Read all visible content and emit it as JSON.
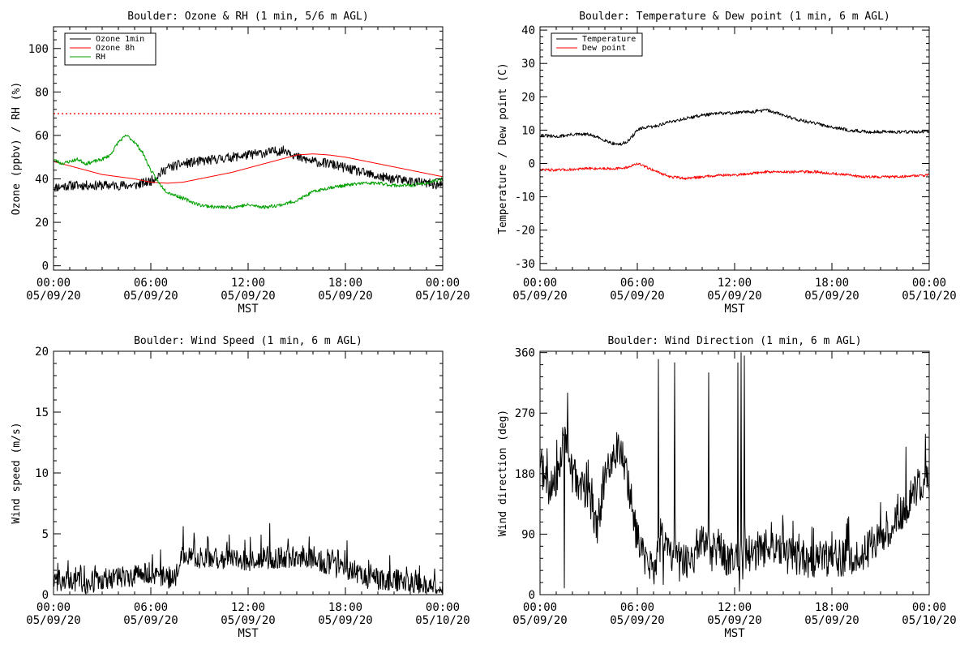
{
  "chart_data": [
    {
      "id": "ozone_rh",
      "type": "line",
      "title": "Boulder: Ozone & RH (1 min, 5/6 m AGL)",
      "xlabel": "MST",
      "ylabel": "Ozone (ppbv) / RH (%)",
      "xlim": [
        0,
        24
      ],
      "ylim": [
        -2,
        110
      ],
      "x_ticks": [
        0,
        6,
        12,
        18,
        24
      ],
      "x_tick_labels": [
        [
          "00:00",
          "05/09/20"
        ],
        [
          "06:00",
          "05/09/20"
        ],
        [
          "12:00",
          "05/09/20"
        ],
        [
          "18:00",
          "05/09/20"
        ],
        [
          "00:00",
          "05/10/20"
        ]
      ],
      "y_ticks": [
        0,
        20,
        40,
        60,
        80,
        100
      ],
      "y_minor_step": 4,
      "legend": "top-left",
      "reference_line": {
        "y": 70,
        "color": "#ff0000",
        "style": "dotted"
      },
      "series": [
        {
          "name": "Ozone 1min",
          "color": "#000000",
          "noise": 2.2,
          "seed": 11,
          "x": [
            0,
            1,
            2,
            3,
            4,
            5,
            5.5,
            6,
            6.5,
            7,
            8,
            9,
            10,
            11,
            12,
            13,
            14,
            14.5,
            15,
            16,
            17,
            18,
            19,
            20,
            21,
            22,
            23,
            24
          ],
          "y": [
            36,
            37,
            37,
            37,
            37,
            37,
            38,
            39,
            42,
            45,
            47,
            48,
            49,
            50,
            51,
            52,
            53,
            53,
            50,
            48,
            47,
            45,
            43,
            41,
            40,
            39,
            38,
            37
          ]
        },
        {
          "name": "Ozone 8h",
          "color": "#ff0000",
          "noise": 0,
          "seed": 0,
          "x": [
            0,
            1,
            2,
            3,
            4,
            5,
            6,
            7,
            8,
            9,
            10,
            11,
            12,
            13,
            14,
            15,
            16,
            17,
            18,
            19,
            20,
            21,
            22,
            23,
            24
          ],
          "y": [
            48,
            46,
            44,
            42,
            41,
            40,
            38.5,
            38,
            38.5,
            40,
            41.5,
            43,
            45,
            47,
            49,
            51,
            51.5,
            51,
            50,
            48.5,
            47,
            45.5,
            44,
            42.5,
            41
          ]
        },
        {
          "name": "RH",
          "color": "#00a000",
          "noise": 0.8,
          "seed": 23,
          "x": [
            0,
            0.5,
            1,
            1.5,
            2,
            2.5,
            3,
            3.5,
            4,
            4.5,
            5,
            5.5,
            6,
            6.5,
            7,
            8,
            9,
            10,
            11,
            12,
            13,
            14,
            15,
            16,
            17,
            18,
            19,
            20,
            21,
            22,
            23,
            24
          ],
          "y": [
            49,
            47,
            48,
            49,
            47,
            48,
            49,
            51,
            57,
            60,
            57,
            52,
            44,
            38,
            34,
            31,
            28,
            27,
            27,
            28,
            27,
            28,
            30,
            34,
            36,
            37,
            38,
            38,
            37,
            37,
            38,
            40
          ]
        }
      ]
    },
    {
      "id": "temp_dew",
      "type": "line",
      "title": "Boulder: Temperature & Dew point (1 min, 6 m AGL)",
      "xlabel": "MST",
      "ylabel": "Temperature / Dew point (C)",
      "xlim": [
        0,
        24
      ],
      "ylim": [
        -32,
        41
      ],
      "x_ticks": [
        0,
        6,
        12,
        18,
        24
      ],
      "x_tick_labels": [
        [
          "00:00",
          "05/09/20"
        ],
        [
          "06:00",
          "05/09/20"
        ],
        [
          "12:00",
          "05/09/20"
        ],
        [
          "18:00",
          "05/09/20"
        ],
        [
          "00:00",
          "05/10/20"
        ]
      ],
      "y_ticks": [
        -30,
        -20,
        -10,
        0,
        10,
        20,
        30,
        40
      ],
      "y_minor_step": 2,
      "legend": "top-left",
      "series": [
        {
          "name": "Temperature",
          "color": "#000000",
          "noise": 0.5,
          "seed": 31,
          "x": [
            0,
            1,
            2,
            3,
            4,
            4.5,
            5,
            5.5,
            6,
            6.5,
            7,
            8,
            9,
            10,
            11,
            12,
            13,
            14,
            15,
            16,
            17,
            18,
            19,
            20,
            21,
            22,
            23,
            24
          ],
          "y": [
            8.5,
            8,
            8.7,
            8.7,
            7,
            6,
            5.7,
            7,
            10,
            10.8,
            11,
            12.5,
            13.5,
            14.5,
            15,
            15.2,
            15.5,
            16,
            14.5,
            13,
            12,
            11,
            10,
            9.5,
            9.5,
            9.5,
            9.5,
            9.5
          ]
        },
        {
          "name": "Dew point",
          "color": "#ff0000",
          "noise": 0.4,
          "seed": 47,
          "x": [
            0,
            1,
            2,
            3,
            4,
            5,
            5.5,
            6,
            6.5,
            7,
            8,
            9,
            10,
            11,
            12,
            13,
            14,
            15,
            16,
            17,
            18,
            19,
            20,
            21,
            22,
            23,
            24
          ],
          "y": [
            -1.8,
            -2,
            -1.8,
            -1.5,
            -1.5,
            -1.5,
            -1,
            0,
            -1,
            -2,
            -4,
            -4.5,
            -4,
            -3.5,
            -3.5,
            -3,
            -2.5,
            -2.5,
            -2.5,
            -2.5,
            -3,
            -3.5,
            -4,
            -4,
            -4,
            -3.7,
            -3.5
          ]
        }
      ]
    },
    {
      "id": "wind_speed",
      "type": "line",
      "title": "Boulder: Wind Speed (1 min, 6 m AGL)",
      "xlabel": "MST",
      "ylabel": "Wind speed (m/s)",
      "xlim": [
        0,
        24
      ],
      "ylim": [
        0,
        20
      ],
      "x_ticks": [
        0,
        6,
        12,
        18,
        24
      ],
      "x_tick_labels": [
        [
          "00:00",
          "05/09/20"
        ],
        [
          "06:00",
          "05/09/20"
        ],
        [
          "12:00",
          "05/09/20"
        ],
        [
          "18:00",
          "05/09/20"
        ],
        [
          "00:00",
          "05/10/20"
        ]
      ],
      "y_ticks": [
        0,
        5,
        10,
        15,
        20
      ],
      "y_minor_step": 1,
      "series": [
        {
          "name": "",
          "color": "#000000",
          "noise": 0.9,
          "spiky": true,
          "seed": 59,
          "floor": 0.1,
          "x": [
            0,
            1,
            2,
            3,
            4,
            5,
            6,
            7,
            7.5,
            8,
            9,
            10,
            11,
            12,
            13,
            14,
            15,
            16,
            17,
            18,
            19,
            20,
            21,
            22,
            23,
            24
          ],
          "y": [
            1.2,
            1.2,
            1,
            1.2,
            1.5,
            1.5,
            1.8,
            1.3,
            1.5,
            3.3,
            3,
            3,
            2.8,
            2.8,
            3,
            3,
            3.2,
            3,
            2.5,
            2,
            1.5,
            1.2,
            1.2,
            1,
            0.8,
            0.6
          ]
        }
      ]
    },
    {
      "id": "wind_dir",
      "type": "line",
      "title": "Boulder: Wind Direction (1 min, 6 m AGL)",
      "xlabel": "MST",
      "ylabel": "Wind direction (deg)",
      "xlim": [
        0,
        24
      ],
      "ylim": [
        0,
        362
      ],
      "x_ticks": [
        0,
        6,
        12,
        18,
        24
      ],
      "x_tick_labels": [
        [
          "00:00",
          "05/09/20"
        ],
        [
          "06:00",
          "05/09/20"
        ],
        [
          "12:00",
          "05/09/20"
        ],
        [
          "18:00",
          "05/09/20"
        ],
        [
          "00:00",
          "05/10/20"
        ]
      ],
      "y_ticks": [
        0,
        90,
        180,
        270,
        360
      ],
      "y_minor_step": 18,
      "series": [
        {
          "name": "",
          "color": "#000000",
          "noise": 28,
          "spiky": true,
          "seed": 71,
          "floor": 5,
          "ceil": 360,
          "x": [
            0,
            0.5,
            1,
            1.5,
            2,
            2.5,
            3,
            3.5,
            4,
            4.5,
            5,
            5.5,
            6,
            6.5,
            7,
            7.5,
            8,
            8.5,
            9,
            9.5,
            10,
            10.5,
            11,
            11.5,
            12,
            12.5,
            13,
            14,
            15,
            16,
            17,
            18,
            19,
            20,
            21,
            22,
            23,
            23.5,
            24
          ],
          "y": [
            200,
            150,
            170,
            240,
            180,
            160,
            150,
            100,
            170,
            210,
            220,
            160,
            80,
            50,
            40,
            80,
            60,
            70,
            50,
            60,
            90,
            60,
            70,
            50,
            60,
            50,
            60,
            70,
            60,
            55,
            50,
            55,
            55,
            60,
            90,
            110,
            150,
            170,
            175
          ],
          "spikes": [
            [
              7.3,
              350
            ],
            [
              7.6,
              15
            ],
            [
              8.3,
              345
            ],
            [
              8.6,
              20
            ],
            [
              10.4,
              330
            ],
            [
              12.2,
              345
            ],
            [
              12.4,
              360
            ],
            [
              12.6,
              355
            ],
            [
              12.3,
              5
            ],
            [
              1.5,
              10
            ],
            [
              1.7,
              300
            ]
          ]
        }
      ]
    }
  ]
}
